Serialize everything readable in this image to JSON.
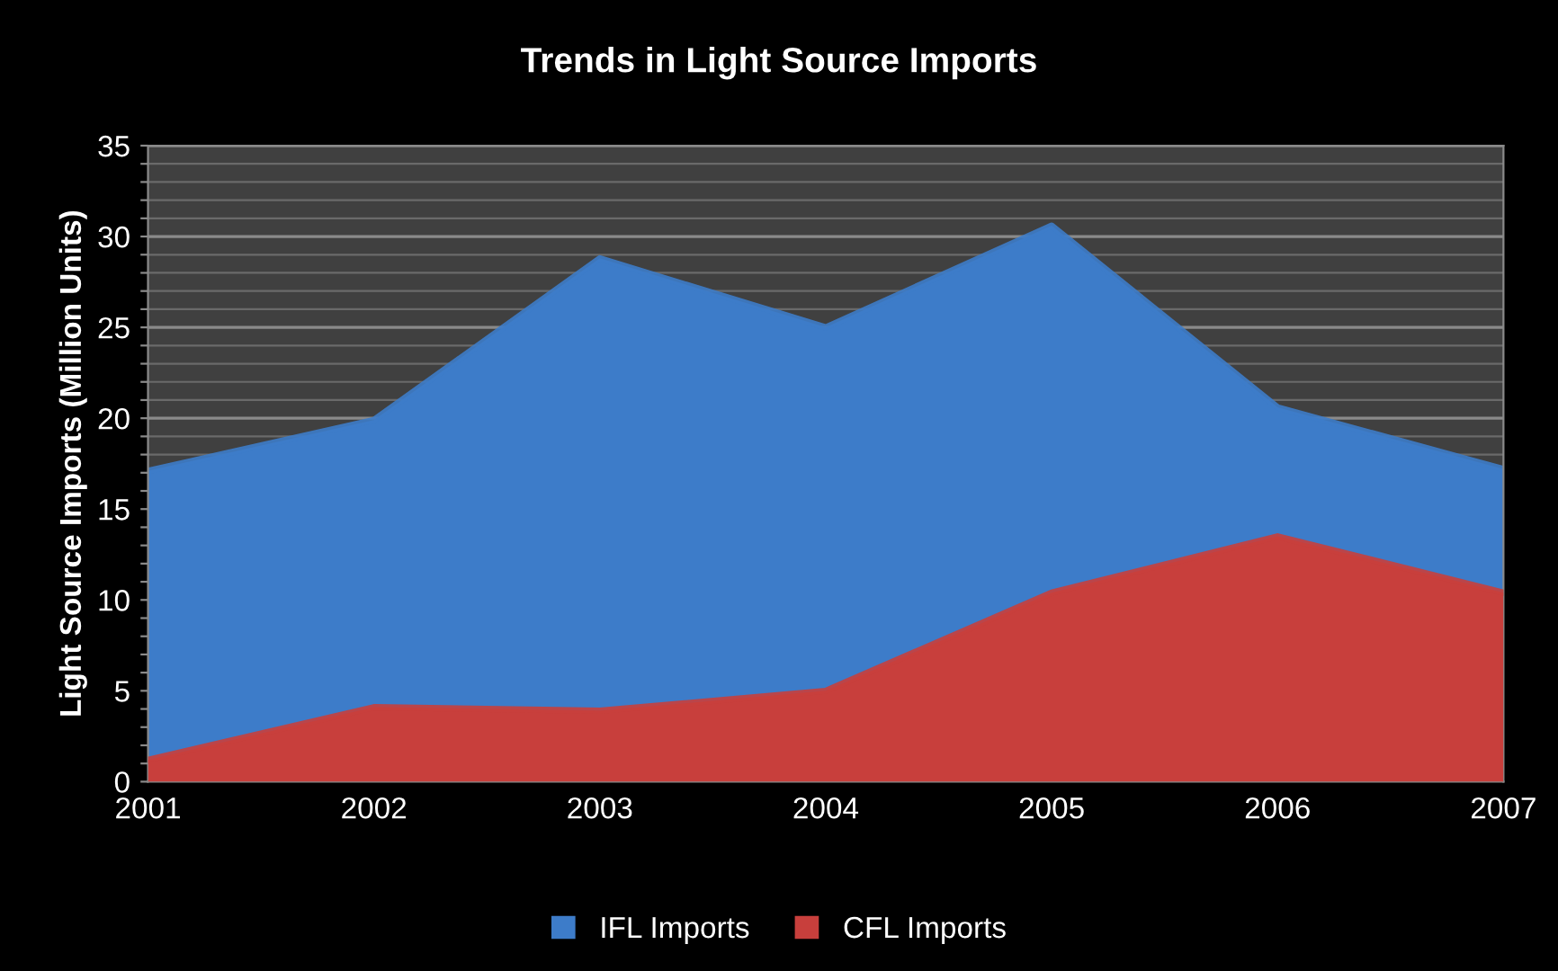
{
  "chart_data": {
    "type": "area",
    "title": "Trends in Light Source Imports",
    "ylabel": "Light Source Imports (Million Units)",
    "categories": [
      "2001",
      "2002",
      "2003",
      "2004",
      "2005",
      "2006",
      "2007"
    ],
    "series": [
      {
        "name": "IFL Imports",
        "color": "#3d7cc9",
        "values": [
          17.1,
          19.9,
          28.8,
          25.0,
          30.6,
          20.6,
          17.2
        ]
      },
      {
        "name": "CFL Imports",
        "color": "#c83f3c",
        "values": [
          1.2,
          4.1,
          3.9,
          5.0,
          10.4,
          13.5,
          10.4
        ]
      }
    ],
    "ylim": [
      0,
      35
    ],
    "yticks": [
      0,
      {
        "value": 1,
        "label": null
      },
      {
        "value": 2,
        "label": null
      },
      {
        "value": 3,
        "label": null
      },
      {
        "value": 4,
        "label": null
      },
      5,
      {
        "value": 6,
        "label": null
      },
      {
        "value": 7,
        "label": null
      },
      {
        "value": 8,
        "label": null
      },
      {
        "value": 9,
        "label": null
      },
      10,
      {
        "value": 11,
        "label": null
      },
      {
        "value": 12,
        "label": null
      },
      {
        "value": 13,
        "label": null
      },
      {
        "value": 14,
        "label": null
      },
      15,
      {
        "value": 16,
        "label": null
      },
      {
        "value": 17,
        "label": null
      },
      {
        "value": 18,
        "label": null
      },
      {
        "value": 19,
        "label": null
      },
      20,
      {
        "value": 21,
        "label": null
      },
      {
        "value": 22,
        "label": null
      },
      {
        "value": 23,
        "label": null
      },
      {
        "value": 24,
        "label": null
      },
      25,
      {
        "value": 26,
        "label": null
      },
      {
        "value": 27,
        "label": null
      },
      {
        "value": 28,
        "label": null
      },
      {
        "value": 29,
        "label": null
      },
      30,
      {
        "value": 31,
        "label": null
      },
      {
        "value": 32,
        "label": null
      },
      {
        "value": 33,
        "label": null
      },
      {
        "value": 34,
        "label": null
      },
      35
    ],
    "grid": "y",
    "legend": "bottom"
  }
}
